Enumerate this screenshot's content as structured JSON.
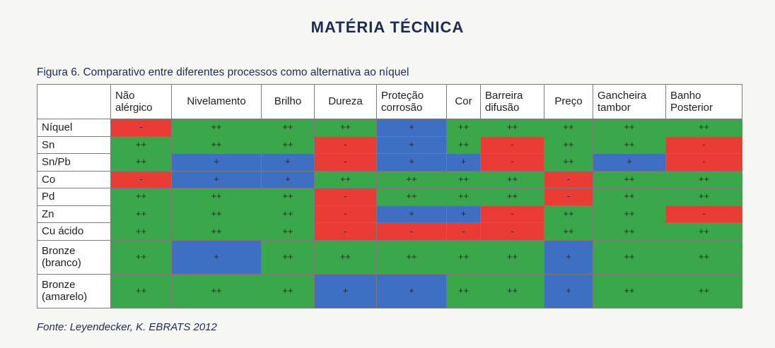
{
  "header": {
    "section_title": "MATÉRIA TÉCNICA"
  },
  "figure": {
    "caption": "Figura 6. Comparativo entre diferentes processos como alternativa ao níquel",
    "source": "Fonte: Leyendecker, K. EBRATS 2012"
  },
  "colors": {
    "pp": "#3aa84a",
    "p": "#3f6fc2",
    "m": "#e83c34"
  },
  "table": {
    "columns": [
      "Não alérgico",
      "Nivelamento",
      "Brilho",
      "Dureza",
      "Proteção corrosão",
      "Cor",
      "Barreira difusão",
      "Preço",
      "Gancheira tambor",
      "Banho Posterior"
    ],
    "rows": [
      {
        "label": "Níquel",
        "cells": [
          "-",
          "++",
          "++",
          "++",
          "+",
          "++",
          "++",
          "++",
          "++",
          "++"
        ]
      },
      {
        "label": "Sn",
        "cells": [
          "++",
          "++",
          "++",
          "-",
          "+",
          "++",
          "-",
          "++",
          "++",
          "-"
        ]
      },
      {
        "label": "Sn/Pb",
        "cells": [
          "++",
          "+",
          "+",
          "-",
          "+",
          "+",
          "-",
          "++",
          "+",
          "-"
        ]
      },
      {
        "label": "Co",
        "cells": [
          "-",
          "+",
          "+",
          "++",
          "++",
          "++",
          "++",
          "-",
          "++",
          "++"
        ]
      },
      {
        "label": "Pd",
        "cells": [
          "++",
          "++",
          "++",
          "-",
          "++",
          "++",
          "++",
          "-",
          "++",
          "++"
        ]
      },
      {
        "label": "Zn",
        "cells": [
          "++",
          "++",
          "++",
          "-",
          "+",
          "+",
          "-",
          "++",
          "++",
          "-"
        ]
      },
      {
        "label": "Cu ácido",
        "cells": [
          "++",
          "++",
          "++",
          "-",
          "-",
          "-",
          "-",
          "++",
          "++",
          "++"
        ]
      },
      {
        "label": "Bronze (branco)",
        "cells": [
          "++",
          "+",
          "++",
          "++",
          "++",
          "++",
          "++",
          "+",
          "++",
          "++"
        ]
      },
      {
        "label": "Bronze (amarelo)",
        "cells": [
          "++",
          "++",
          "++",
          "+",
          "+",
          "++",
          "++",
          "+",
          "++",
          "++"
        ]
      }
    ]
  }
}
